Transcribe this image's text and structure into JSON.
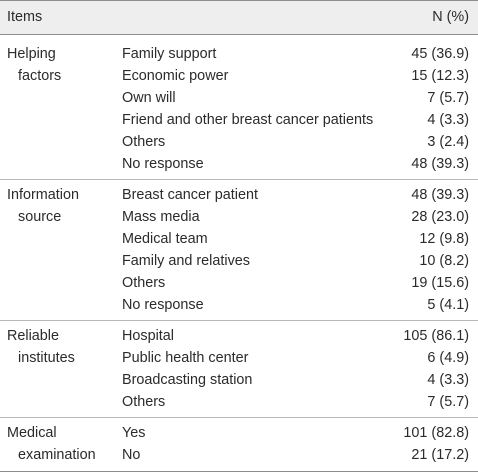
{
  "header": {
    "items_label": "Items",
    "n_label": "N (%)"
  },
  "groups": [
    {
      "category_line1": "Helping",
      "category_line2": "factors",
      "rows": [
        {
          "label": "Family support",
          "value": "45 (36.9)"
        },
        {
          "label": "Economic power",
          "value": "15 (12.3)"
        },
        {
          "label": "Own will",
          "value": "7 (5.7)"
        },
        {
          "label": "Friend and other breast cancer patients",
          "value": "4 (3.3)"
        },
        {
          "label": "Others",
          "value": "3 (2.4)"
        },
        {
          "label": "No response",
          "value": "48 (39.3)"
        }
      ]
    },
    {
      "category_line1": "Information",
      "category_line2": "source",
      "rows": [
        {
          "label": "Breast cancer patient",
          "value": "48 (39.3)"
        },
        {
          "label": "Mass media",
          "value": "28 (23.0)"
        },
        {
          "label": "Medical team",
          "value": "12 (9.8)"
        },
        {
          "label": "Family and relatives",
          "value": "10 (8.2)"
        },
        {
          "label": "Others",
          "value": "19 (15.6)"
        },
        {
          "label": "No response",
          "value": "5 (4.1)"
        }
      ]
    },
    {
      "category_line1": "Reliable",
      "category_line2": "institutes",
      "rows": [
        {
          "label": "Hospital",
          "value": "105 (86.1)"
        },
        {
          "label": "Public health center",
          "value": "6 (4.9)"
        },
        {
          "label": "Broadcasting station",
          "value": "4 (3.3)"
        },
        {
          "label": "Others",
          "value": "7 (5.7)"
        }
      ]
    },
    {
      "category_line1": "Medical",
      "category_line2": "examination",
      "rows": [
        {
          "label": "Yes",
          "value": "101 (82.8)"
        },
        {
          "label": "No",
          "value": "21 (17.2)"
        }
      ]
    }
  ]
}
